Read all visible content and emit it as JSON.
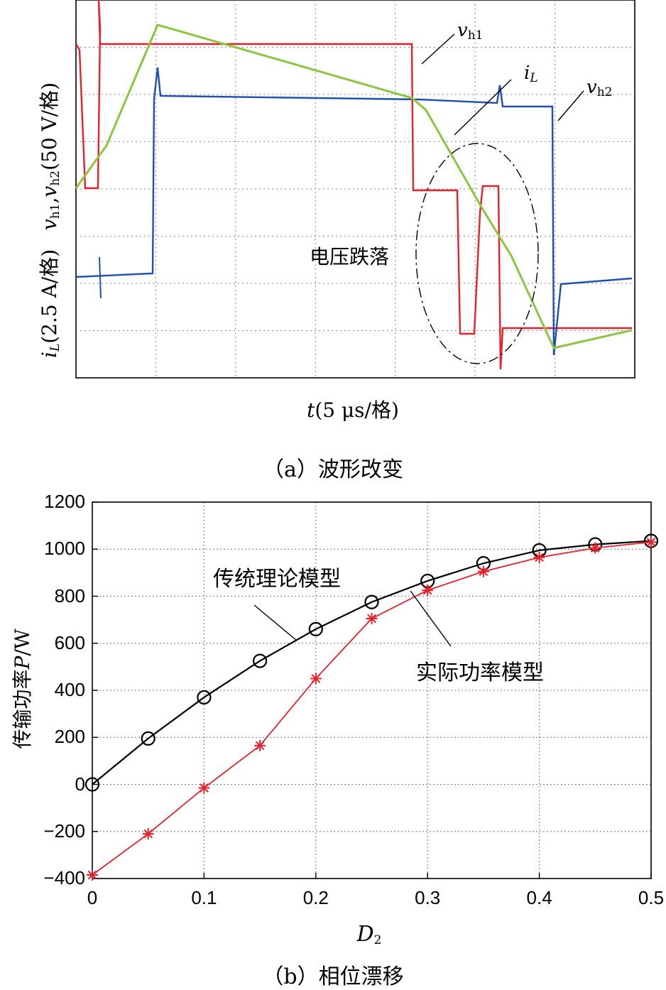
{
  "panel_a": {
    "caption": "（a）波形改变",
    "y_axis_label": "i_L(2.5 A/格)   v_h1, v_h2(50 V/格)",
    "x_axis_label": "t(5 μs/格)",
    "traces": [
      {
        "name": "v_h1",
        "color": "#e8202a"
      },
      {
        "name": "v_h2",
        "color": "#1f4fb4"
      },
      {
        "name": "i_L",
        "color": "#8cc63e"
      }
    ],
    "annotations": {
      "vh1": "v_h1",
      "iL": "i_L",
      "vh2": "v_h2",
      "drop": "电压跌落"
    }
  },
  "panel_b": {
    "caption": "（b）相位漂移",
    "y_label": "传输功率P/W",
    "x_label": "D2",
    "annotation_traditional": "传统理论模型",
    "annotation_actual": "实际功率模型"
  },
  "chart_data": [
    {
      "type": "line",
      "x": [
        0,
        0.05,
        0.1,
        0.15,
        0.2,
        0.25,
        0.3,
        0.35,
        0.4,
        0.45,
        0.5
      ],
      "series": [
        {
          "name": "传统理论模型",
          "color": "#000000",
          "marker": "circle",
          "values": [
            0,
            195,
            370,
            525,
            660,
            775,
            865,
            940,
            995,
            1020,
            1035
          ]
        },
        {
          "name": "实际功率模型",
          "color": "#e8202a",
          "marker": "asterisk",
          "values": [
            -385,
            -210,
            -15,
            165,
            450,
            705,
            825,
            905,
            965,
            1005,
            1030
          ]
        }
      ],
      "xlim": [
        0,
        0.5
      ],
      "ylim": [
        -400,
        1200
      ],
      "xticks": [
        "0",
        "0.1",
        "0.2",
        "0.3",
        "0.4",
        "0.5"
      ],
      "yticks": [
        "−400",
        "−200",
        "0",
        "200",
        "400",
        "600",
        "800",
        "1000",
        "1200"
      ],
      "xlabel": "D2",
      "ylabel": "传输功率P/W",
      "grid": true
    }
  ]
}
